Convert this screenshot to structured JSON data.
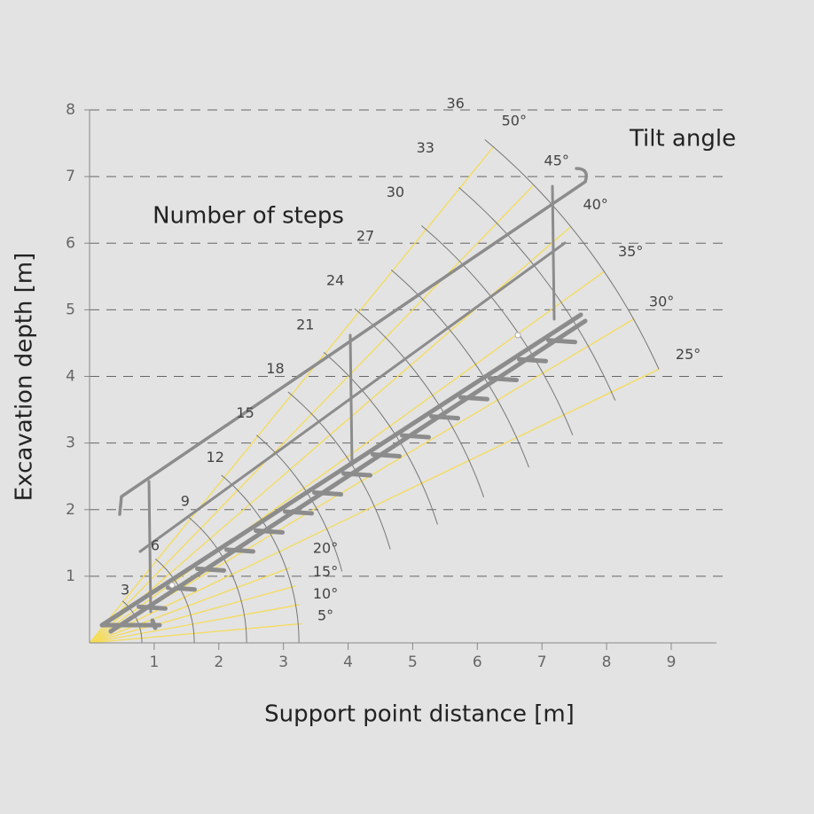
{
  "chart_data": {
    "type": "protractor",
    "title": "Tilt angle",
    "subtitle": "Number of steps",
    "x_label": "Support point distance [m]",
    "y_label": "Excavation depth [m]",
    "xlim": [
      0,
      9.7
    ],
    "ylim": [
      0,
      8
    ],
    "xticks": [
      1,
      2,
      3,
      4,
      5,
      6,
      7,
      8,
      9
    ],
    "yticks": [
      1,
      2,
      3,
      4,
      5,
      6,
      7,
      8
    ],
    "grid": true,
    "ray_color": "#f5dc5a",
    "arc_color": "#777777",
    "angles": [
      {
        "value": 5,
        "label": "5°"
      },
      {
        "value": 10,
        "label": "10°"
      },
      {
        "value": 15,
        "label": "15°"
      },
      {
        "value": 20,
        "label": "20°"
      },
      {
        "value": 25,
        "label": "25°"
      },
      {
        "value": 30,
        "label": "30°"
      },
      {
        "value": 35,
        "label": "35°"
      },
      {
        "value": 40,
        "label": "40°"
      },
      {
        "value": 45,
        "label": "45°"
      },
      {
        "value": 50,
        "label": "50°"
      }
    ],
    "steps": [
      3,
      6,
      9,
      12,
      15,
      18,
      21,
      24,
      27,
      30,
      33,
      36
    ]
  }
}
